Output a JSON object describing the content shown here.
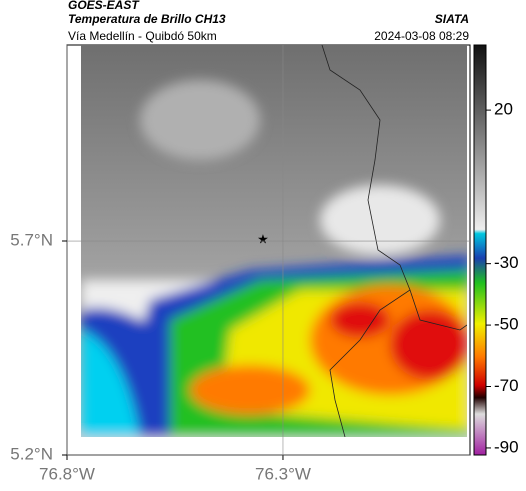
{
  "header": {
    "product": "GOES-EAST",
    "title": "Temperatura de Brillo CH13",
    "source": "SIATA",
    "subtitle": "Vía Medellín - Quibdó 50km",
    "timestamp": "2024-03-08 08:29"
  },
  "map": {
    "xlim": [
      -76.8,
      -75.867
    ],
    "ylim": [
      5.2,
      6.158
    ],
    "xticks": [
      {
        "value": -76.8,
        "label": "76.8°W"
      },
      {
        "value": -76.3,
        "label": "76.3°W"
      }
    ],
    "yticks": [
      {
        "value": 5.7,
        "label": "5.7°N"
      },
      {
        "value": 5.2,
        "label": "5.2°N"
      }
    ],
    "grid": true
  },
  "colorbar": {
    "lim": [
      -92.3,
      41.2
    ],
    "ticks": [
      20,
      -30,
      -50,
      -70,
      -90
    ]
  }
}
